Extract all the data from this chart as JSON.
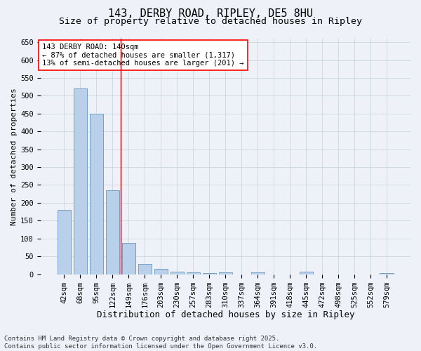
{
  "title_line1": "143, DERBY ROAD, RIPLEY, DE5 8HU",
  "title_line2": "Size of property relative to detached houses in Ripley",
  "xlabel": "Distribution of detached houses by size in Ripley",
  "ylabel": "Number of detached properties",
  "categories": [
    "42sqm",
    "68sqm",
    "95sqm",
    "122sqm",
    "149sqm",
    "176sqm",
    "203sqm",
    "230sqm",
    "257sqm",
    "283sqm",
    "310sqm",
    "337sqm",
    "364sqm",
    "391sqm",
    "418sqm",
    "445sqm",
    "472sqm",
    "498sqm",
    "525sqm",
    "552sqm",
    "579sqm"
  ],
  "values": [
    180,
    520,
    450,
    235,
    88,
    28,
    15,
    7,
    5,
    3,
    5,
    0,
    6,
    0,
    0,
    7,
    0,
    0,
    0,
    0,
    4
  ],
  "bar_color": "#b8d0ea",
  "bar_edge_color": "#5585b5",
  "grid_color": "#ccd5e0",
  "background_color": "#eef2f8",
  "vline_x_index": 3.5,
  "vline_color": "#cc0000",
  "annotation_text": "143 DERBY ROAD: 140sqm\n← 87% of detached houses are smaller (1,317)\n13% of semi-detached houses are larger (201) →",
  "ylim": [
    0,
    660
  ],
  "yticks": [
    0,
    50,
    100,
    150,
    200,
    250,
    300,
    350,
    400,
    450,
    500,
    550,
    600,
    650
  ],
  "footnote_line1": "Contains HM Land Registry data © Crown copyright and database right 2025.",
  "footnote_line2": "Contains public sector information licensed under the Open Government Licence v3.0.",
  "title_fontsize": 11,
  "subtitle_fontsize": 9.5,
  "xlabel_fontsize": 9,
  "ylabel_fontsize": 8,
  "tick_fontsize": 7.5,
  "annotation_fontsize": 7.5,
  "footnote_fontsize": 6.5
}
